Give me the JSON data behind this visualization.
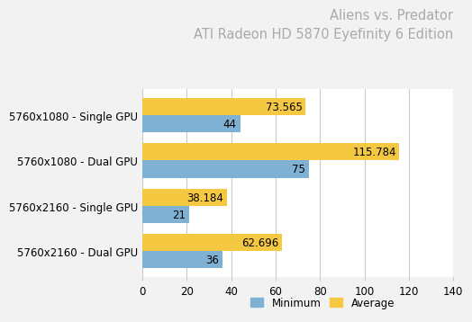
{
  "title_line1": "Aliens vs. Predator",
  "title_line2": "ATI Radeon HD 5870 Eyefinity 6 Edition",
  "categories": [
    "5760x1080 - Single GPU",
    "5760x1080 - Dual GPU",
    "5760x2160 - Single GPU",
    "5760x2160 - Dual GPU"
  ],
  "minimum": [
    44,
    75,
    21,
    36
  ],
  "average": [
    73.565,
    115.784,
    38.184,
    62.696
  ],
  "min_labels": [
    "44",
    "75",
    "21",
    "36"
  ],
  "avg_labels": [
    "73.565",
    "115.784",
    "38.184",
    "62.696"
  ],
  "min_color": "#7EB1D4",
  "avg_color": "#F5C842",
  "xlim": [
    0,
    140
  ],
  "xticks": [
    0,
    20,
    40,
    60,
    80,
    100,
    120,
    140
  ],
  "legend_labels": [
    "Minimum",
    "Average"
  ],
  "background_color": "#F2F2F2",
  "plot_bg_color": "#FFFFFF",
  "title_color": "#AAAAAA",
  "label_fontsize": 8.5,
  "title_fontsize": 10.5,
  "bar_height": 0.38,
  "grid_color": "#C8C8C8"
}
